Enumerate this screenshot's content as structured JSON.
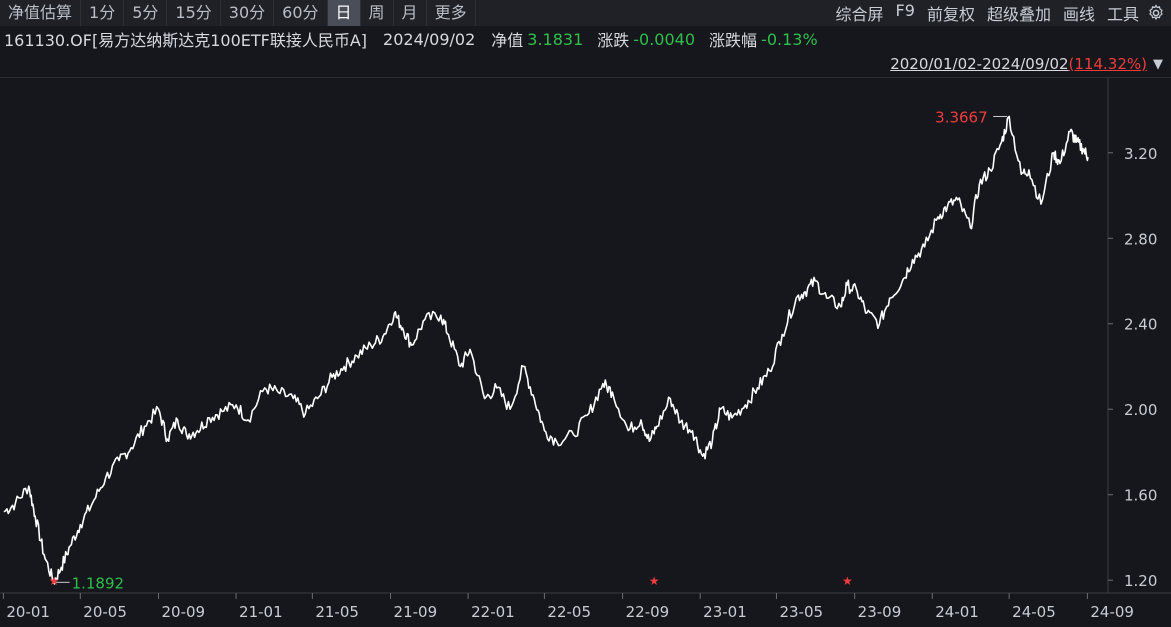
{
  "toolbar": {
    "periods": [
      "净值估算",
      "1分",
      "5分",
      "15分",
      "30分",
      "60分",
      "日",
      "周",
      "月",
      "更多"
    ],
    "active_period": "日",
    "tools": [
      "综合屏",
      "F9",
      "前复权",
      "超级叠加",
      "画线",
      "工具"
    ],
    "settings_icon": "gear-icon"
  },
  "info": {
    "fund_name": "161130.OF[易方达纳斯达克100ETF联接人民币A]",
    "date": "2024/09/02",
    "nav_label": "净值",
    "nav_value": "3.1831",
    "change_label": "涨跌",
    "change_value": "-0.0040",
    "change_pct_label": "涨跌幅",
    "change_pct_value": "-0.13%"
  },
  "range": {
    "text": "2020/01/02-2024/09/02",
    "pct": "114.32%",
    "open": "(",
    "close": ")",
    "arrow_icon": "triangle-down-icon"
  },
  "colors": {
    "background": "#15171c",
    "line": "#ffffff",
    "up": "#f03c3c",
    "down": "#2fbf4a",
    "grid": "#2b2e35"
  },
  "chart_data": {
    "type": "line",
    "title": "",
    "xlabel": "",
    "ylabel": "",
    "ylim": [
      1.14,
      3.55
    ],
    "y_ticks": [
      "3.20",
      "2.80",
      "2.40",
      "2.00",
      "1.60",
      "1.20"
    ],
    "x_ticks": [
      "20-01",
      "20-05",
      "20-09",
      "21-01",
      "21-05",
      "21-09",
      "22-01",
      "22-05",
      "22-09",
      "23-01",
      "23-05",
      "23-09",
      "24-01",
      "24-05",
      "24-09"
    ],
    "max_label": "3.3667",
    "min_label": "1.1892",
    "markers": [
      {
        "date": "2020-03-20",
        "symbol": "★"
      },
      {
        "date": "2022-10-20",
        "symbol": "★"
      },
      {
        "date": "2023-08-20",
        "symbol": "★"
      }
    ],
    "series": [
      {
        "x": [
          "2020-01-02",
          "2020-01-20",
          "2020-02-10",
          "2020-02-20",
          "2020-03-05",
          "2020-03-20",
          "2020-04-01",
          "2020-04-15",
          "2020-05-01",
          "2020-05-20",
          "2020-06-10",
          "2020-07-01",
          "2020-07-20",
          "2020-08-10",
          "2020-09-01",
          "2020-09-15",
          "2020-10-01",
          "2020-10-15",
          "2020-11-01",
          "2020-11-20",
          "2020-12-10",
          "2021-01-01",
          "2021-01-20",
          "2021-02-15",
          "2021-03-08",
          "2021-04-01",
          "2021-04-20",
          "2021-05-12",
          "2021-06-01",
          "2021-06-20",
          "2021-07-10",
          "2021-08-01",
          "2021-08-20",
          "2021-09-07",
          "2021-09-20",
          "2021-10-04",
          "2021-10-25",
          "2021-11-19",
          "2021-12-01",
          "2021-12-20",
          "2022-01-04",
          "2022-01-27",
          "2022-02-15",
          "2022-03-08",
          "2022-03-29",
          "2022-04-15",
          "2022-05-01",
          "2022-05-20",
          "2022-06-16",
          "2022-07-10",
          "2022-08-01",
          "2022-08-16",
          "2022-09-10",
          "2022-09-30",
          "2022-10-13",
          "2022-10-25",
          "2022-11-15",
          "2022-12-01",
          "2022-12-20",
          "2023-01-05",
          "2023-01-20",
          "2023-02-02",
          "2023-02-20",
          "2023-03-13",
          "2023-04-01",
          "2023-04-20",
          "2023-05-10",
          "2023-06-01",
          "2023-06-15",
          "2023-07-01",
          "2023-07-19",
          "2023-08-10",
          "2023-08-20",
          "2023-09-05",
          "2023-09-20",
          "2023-10-10",
          "2023-10-26",
          "2023-11-15",
          "2023-12-01",
          "2023-12-20",
          "2024-01-10",
          "2024-01-25",
          "2024-02-10",
          "2024-03-01",
          "2024-03-15",
          "2024-04-01",
          "2024-04-19",
          "2024-05-01",
          "2024-05-20",
          "2024-06-01",
          "2024-06-20",
          "2024-07-10",
          "2024-07-20",
          "2024-08-05",
          "2024-08-15",
          "2024-08-25",
          "2024-09-02"
        ],
        "y": [
          1.52,
          1.56,
          1.64,
          1.5,
          1.32,
          1.19,
          1.26,
          1.36,
          1.46,
          1.56,
          1.68,
          1.76,
          1.82,
          1.92,
          2.0,
          1.86,
          1.95,
          1.88,
          1.9,
          1.96,
          1.99,
          2.02,
          1.95,
          2.1,
          2.08,
          2.05,
          1.98,
          2.06,
          2.15,
          2.2,
          2.25,
          2.3,
          2.34,
          2.45,
          2.38,
          2.3,
          2.42,
          2.44,
          2.35,
          2.2,
          2.28,
          2.05,
          2.1,
          2.0,
          2.2,
          2.05,
          1.9,
          1.85,
          1.88,
          1.98,
          2.12,
          2.08,
          1.9,
          1.95,
          1.85,
          1.92,
          2.05,
          1.94,
          1.9,
          1.78,
          1.85,
          2.0,
          1.96,
          2.02,
          2.1,
          2.18,
          2.35,
          2.52,
          2.55,
          2.6,
          2.52,
          2.48,
          2.58,
          2.55,
          2.45,
          2.4,
          2.52,
          2.6,
          2.7,
          2.76,
          2.9,
          2.95,
          2.98,
          2.85,
          3.05,
          3.12,
          3.25,
          3.37,
          3.1,
          3.12,
          2.96,
          3.2,
          3.15,
          3.3,
          3.25,
          3.22,
          3.18
        ]
      }
    ]
  }
}
